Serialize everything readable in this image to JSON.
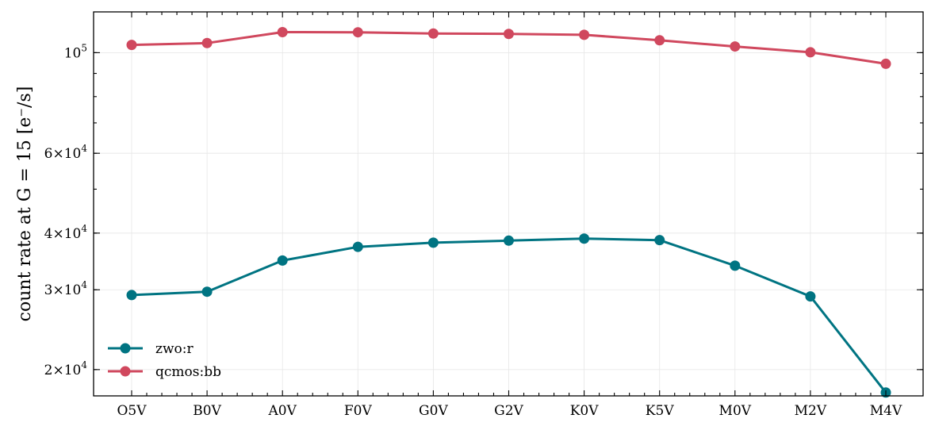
{
  "chart_data": {
    "type": "line",
    "title": "",
    "xlabel": "",
    "ylabel": "count rate at G = 15 [e⁻/s]",
    "yscale": "log",
    "ylim": [
      17500,
      123000
    ],
    "grid": true,
    "legend_position": "lower-left",
    "categories": [
      "O5V",
      "B0V",
      "A0V",
      "F0V",
      "G0V",
      "G2V",
      "K0V",
      "K5V",
      "M0V",
      "M2V",
      "M4V"
    ],
    "y_major_ticks": [
      {
        "value": 20000,
        "mantissa": "2",
        "exponent": "4"
      },
      {
        "value": 30000,
        "mantissa": "3",
        "exponent": "4"
      },
      {
        "value": 40000,
        "mantissa": "4",
        "exponent": "4"
      },
      {
        "value": 60000,
        "mantissa": "6",
        "exponent": "4"
      },
      {
        "value": 100000,
        "mantissa": "",
        "exponent": "5"
      }
    ],
    "series": [
      {
        "name": "zwo:r",
        "color": "#007482",
        "values": [
          29200,
          29700,
          34800,
          37300,
          38100,
          38500,
          38900,
          38600,
          33900,
          29000,
          17800
        ]
      },
      {
        "name": "qcmos:bb",
        "color": "#d0485e",
        "values": [
          104000,
          105000,
          111000,
          110900,
          110200,
          110000,
          109500,
          106500,
          103200,
          100200,
          94500
        ]
      }
    ]
  }
}
